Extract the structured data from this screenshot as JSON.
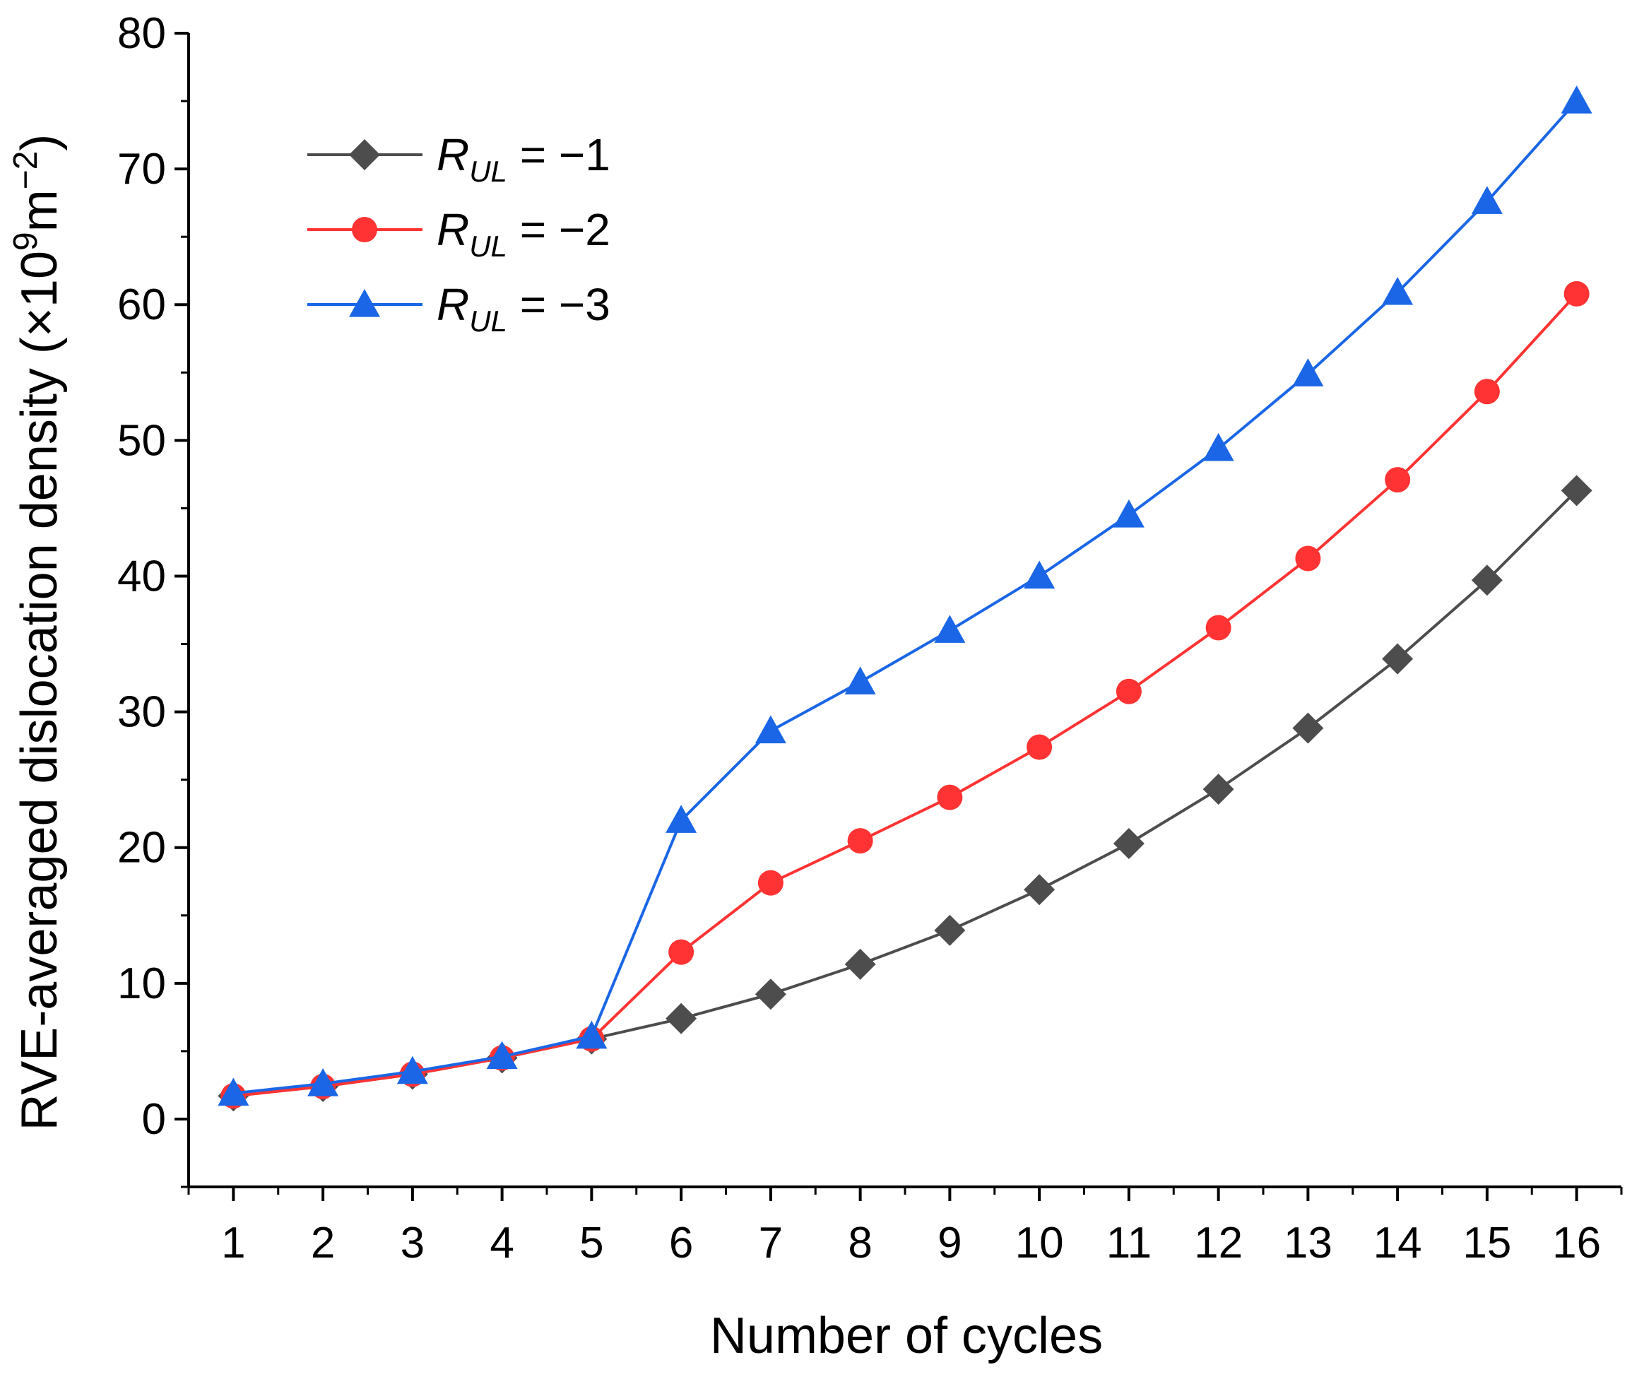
{
  "chart_data": {
    "type": "line",
    "title": "",
    "xlabel": "Number of cycles",
    "ylabel": {
      "prefix": "RVE-averaged dislocation density (×10",
      "exp1": "9",
      "mid": "m",
      "exp2": "−2",
      "suffix": ")"
    },
    "x": [
      1,
      2,
      3,
      4,
      5,
      6,
      7,
      8,
      9,
      10,
      11,
      12,
      13,
      14,
      15,
      16
    ],
    "xlim": [
      0.5,
      16.5
    ],
    "ylim": [
      -5,
      80
    ],
    "yticks": [
      0,
      10,
      20,
      30,
      40,
      50,
      60,
      70,
      80
    ],
    "legend_position": "top-left",
    "series": [
      {
        "name": "R_UL = −1",
        "legend": {
          "r": "R",
          "sub": "UL",
          "eq": " = −1"
        },
        "color": "#4d4d4d",
        "marker": "diamond",
        "values": [
          1.7,
          2.4,
          3.3,
          4.5,
          5.9,
          7.4,
          9.2,
          11.4,
          13.9,
          16.9,
          20.3,
          24.3,
          28.8,
          33.9,
          39.7,
          46.3
        ]
      },
      {
        "name": "R_UL = −2",
        "legend": {
          "r": "R",
          "sub": "UL",
          "eq": " = −2"
        },
        "color": "#ff3333",
        "marker": "circle",
        "values": [
          1.7,
          2.4,
          3.3,
          4.5,
          5.9,
          12.3,
          17.4,
          20.5,
          23.7,
          27.4,
          31.5,
          36.2,
          41.3,
          47.1,
          53.6,
          60.8
        ]
      },
      {
        "name": "R_UL = −3",
        "legend": {
          "r": "R",
          "sub": "UL",
          "eq": " = −3"
        },
        "color": "#1a66e6",
        "marker": "triangle",
        "values": [
          1.9,
          2.6,
          3.5,
          4.6,
          6.1,
          22.0,
          28.6,
          32.2,
          36.0,
          40.0,
          44.5,
          49.4,
          54.9,
          60.9,
          67.6,
          75.0
        ]
      }
    ]
  }
}
